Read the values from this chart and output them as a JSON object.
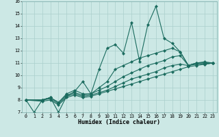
{
  "xlabel": "Humidex (Indice chaleur)",
  "bg_color": "#cce8e5",
  "grid_color": "#aacfcc",
  "line_color": "#1a6b5e",
  "xlim": [
    -0.5,
    23.5
  ],
  "ylim": [
    7,
    16
  ],
  "xticks": [
    0,
    1,
    2,
    3,
    4,
    5,
    6,
    7,
    8,
    9,
    10,
    11,
    12,
    13,
    14,
    15,
    16,
    17,
    18,
    19,
    20,
    21,
    22,
    23
  ],
  "yticks": [
    7,
    8,
    9,
    10,
    11,
    12,
    13,
    14,
    15,
    16
  ],
  "lines": [
    {
      "x": [
        0,
        1,
        2,
        3,
        4,
        5,
        6,
        7,
        8,
        9,
        10,
        11,
        12,
        13,
        14,
        15,
        16,
        17,
        18,
        19,
        20,
        21,
        22,
        23
      ],
      "y": [
        8.0,
        7.0,
        8.0,
        8.2,
        7.0,
        8.3,
        8.7,
        9.5,
        8.5,
        10.5,
        12.2,
        12.5,
        11.8,
        14.3,
        11.1,
        14.1,
        15.6,
        13.0,
        12.6,
        11.9,
        10.8,
        11.0,
        11.1,
        11.0
      ]
    },
    {
      "x": [
        0,
        2,
        3,
        4,
        5,
        6,
        7,
        8,
        9,
        10,
        11,
        12,
        13,
        14,
        15,
        16,
        17,
        18,
        19,
        20,
        21,
        22,
        23
      ],
      "y": [
        8.0,
        8.0,
        8.2,
        7.8,
        8.5,
        8.8,
        8.5,
        8.5,
        9.0,
        9.5,
        10.5,
        10.8,
        11.1,
        11.4,
        11.6,
        11.8,
        12.0,
        12.2,
        11.9,
        10.8,
        11.0,
        11.0,
        11.0
      ]
    },
    {
      "x": [
        0,
        2,
        3,
        4,
        5,
        6,
        7,
        8,
        9,
        10,
        11,
        12,
        13,
        14,
        15,
        16,
        17,
        18,
        19,
        20,
        21,
        22,
        23
      ],
      "y": [
        8.0,
        8.0,
        8.2,
        7.8,
        8.4,
        8.6,
        8.4,
        8.5,
        8.8,
        9.1,
        9.5,
        9.9,
        10.2,
        10.5,
        10.8,
        11.0,
        11.2,
        11.5,
        11.6,
        10.8,
        11.0,
        11.0,
        11.0
      ]
    },
    {
      "x": [
        0,
        2,
        3,
        4,
        5,
        6,
        7,
        8,
        9,
        10,
        11,
        12,
        13,
        14,
        15,
        16,
        17,
        18,
        19,
        20,
        21,
        22,
        23
      ],
      "y": [
        8.0,
        8.0,
        8.1,
        7.7,
        8.3,
        8.5,
        8.3,
        8.4,
        8.6,
        8.8,
        9.1,
        9.4,
        9.7,
        9.9,
        10.1,
        10.3,
        10.6,
        10.8,
        10.9,
        10.8,
        10.9,
        10.9,
        11.0
      ]
    },
    {
      "x": [
        0,
        2,
        3,
        4,
        5,
        6,
        7,
        8,
        9,
        10,
        11,
        12,
        13,
        14,
        15,
        16,
        17,
        18,
        19,
        20,
        21,
        22,
        23
      ],
      "y": [
        8.0,
        7.9,
        8.0,
        7.6,
        8.2,
        8.4,
        8.2,
        8.3,
        8.5,
        8.7,
        8.9,
        9.1,
        9.3,
        9.5,
        9.7,
        9.9,
        10.1,
        10.3,
        10.5,
        10.7,
        10.8,
        10.9,
        11.0
      ]
    }
  ]
}
